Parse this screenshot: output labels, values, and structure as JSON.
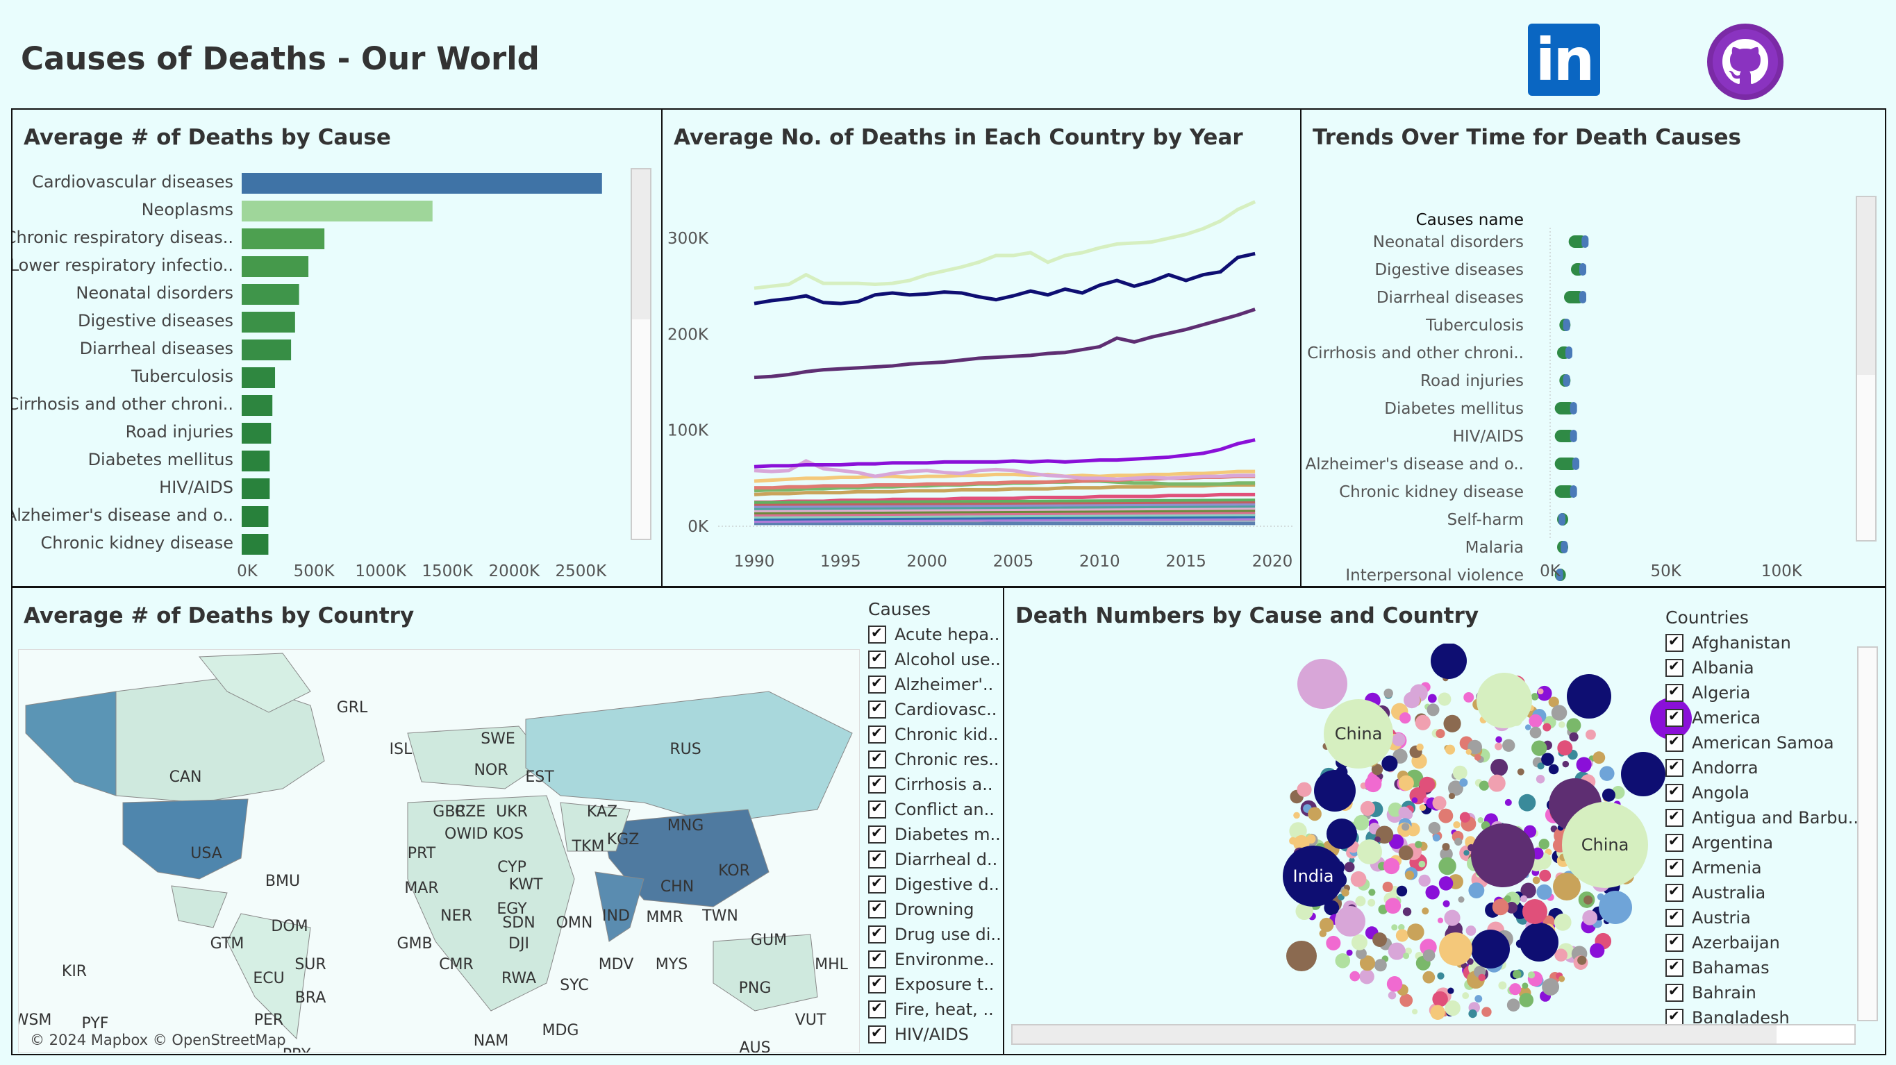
{
  "title": "Causes of Deaths - Our World",
  "logos": {
    "linkedin": "in",
    "github": "github-icon"
  },
  "bar_panel": {
    "title": "Average # of Deaths by Cause",
    "xticks": [
      "0K",
      "500K",
      "1000K",
      "1500K",
      "2000K",
      "2500K"
    ]
  },
  "line_panel": {
    "title": "Average No. of Deaths in Each Country by Year",
    "yticks": [
      "0K",
      "100K",
      "200K",
      "300K"
    ],
    "xticks": [
      "1990",
      "1995",
      "2000",
      "2005",
      "2010",
      "2015",
      "2020"
    ]
  },
  "trend_panel": {
    "title": "Trends Over Time for Death Causes",
    "header": "Causes name",
    "rows": [
      "Neonatal disorders",
      "Digestive diseases",
      "Diarrheal diseases",
      "Tuberculosis",
      "Cirrhosis and other chroni..",
      "Road injuries",
      "Diabetes mellitus",
      "HIV/AIDS",
      "Alzheimer's disease and o..",
      "Chronic kidney disease",
      "Self-harm",
      "Malaria",
      "Interpersonal violence"
    ],
    "xticks": [
      "0K",
      "50K",
      "100K"
    ]
  },
  "map_panel": {
    "title": "Average # of Deaths by Country",
    "copyright": "© 2024 Mapbox © OpenStreetMap",
    "labels": [
      "GRL",
      "ISL",
      "SWE",
      "NOR",
      "EST",
      "CAN",
      "RUS",
      "GBR",
      "CZE",
      "UKR",
      "KAZ",
      "MNG",
      "OWID_KOS",
      "USA",
      "PRT",
      "CYP",
      "KGZ",
      "TKM",
      "BMU",
      "MAR",
      "KWT",
      "CHN",
      "KOR",
      "EGY",
      "IND",
      "MMR",
      "TWN",
      "DOM",
      "NER",
      "SDN",
      "OMN",
      "GTM",
      "GMB",
      "DJI",
      "MDV",
      "GUM",
      "KIR",
      "SUR",
      "CMR",
      "MYS",
      "MHL",
      "ECU",
      "BRA",
      "RWA",
      "SYC",
      "PNG",
      "WSM",
      "PYF",
      "PER",
      "NAM",
      "MDG",
      "VUT",
      "AUS",
      "PRY"
    ]
  },
  "causes_legend": {
    "header": "Causes",
    "items": [
      "Acute hepa..",
      "Alcohol use..",
      "Alzheimer'..",
      "Cardiovasc..",
      "Chronic kid..",
      "Chronic res..",
      "Cirrhosis a..",
      "Conflict an..",
      "Diabetes m..",
      "Diarrheal d..",
      "Digestive d..",
      "Drowning",
      "Drug use di..",
      "Environme..",
      "Exposure t..",
      "Fire, heat, ..",
      "HIV/AIDS"
    ]
  },
  "bubble_panel": {
    "title": "Death Numbers by Cause and Country",
    "labels": [
      "China",
      "China",
      "India"
    ]
  },
  "countries_legend": {
    "header": "Countries",
    "items": [
      "Afghanistan",
      "Albania",
      "Algeria",
      "America",
      "American Samoa",
      "Andorra",
      "Angola",
      "Antigua and Barbu..",
      "Argentina",
      "Armenia",
      "Australia",
      "Austria",
      "Azerbaijan",
      "Bahamas",
      "Bahrain",
      "Bangladesh"
    ]
  },
  "chart_data": [
    {
      "type": "bar",
      "title": "Average # of Deaths by Cause",
      "categories": [
        "Cardiovascular diseases",
        "Neoplasms",
        "Chronic respiratory diseas..",
        "Lower respiratory infectio..",
        "Neonatal disorders",
        "Digestive diseases",
        "Diarrheal diseases",
        "Tuberculosis",
        "Cirrhosis and other chroni..",
        "Road injuries",
        "Diabetes mellitus",
        "HIV/AIDS",
        "Alzheimer's disease and o..",
        "Chronic kidney disease"
      ],
      "values": [
        2700000,
        1430000,
        620000,
        500000,
        430000,
        400000,
        370000,
        250000,
        230000,
        220000,
        210000,
        210000,
        200000,
        200000
      ],
      "xlim": [
        0,
        2800000
      ],
      "colors": [
        "#3f73a6",
        "#9fd69a",
        "#4da050",
        "#45994b",
        "#3f954a",
        "#3b9147",
        "#378e45",
        "#2f8740",
        "#2d853f",
        "#2b843e",
        "#2a833d",
        "#29823c",
        "#28813b",
        "#28813b"
      ]
    },
    {
      "type": "line",
      "title": "Average No. of Deaths in Each Country by Year",
      "x": [
        1990,
        1991,
        1992,
        1993,
        1994,
        1995,
        1996,
        1997,
        1998,
        1999,
        2000,
        2001,
        2002,
        2003,
        2004,
        2005,
        2006,
        2007,
        2008,
        2009,
        2010,
        2011,
        2012,
        2013,
        2014,
        2015,
        2016,
        2017,
        2018,
        2019
      ],
      "ylim": [
        0,
        350000
      ],
      "series": [
        {
          "color": "#d6efc0",
          "values": [
            248000,
            250000,
            252000,
            262000,
            253000,
            253000,
            253000,
            252000,
            253000,
            256000,
            262000,
            266000,
            270000,
            275000,
            282000,
            282000,
            285000,
            275000,
            282000,
            285000,
            290000,
            294000,
            295000,
            296000,
            300000,
            304000,
            310000,
            318000,
            330000,
            338000
          ]
        },
        {
          "color": "#0e0e72",
          "values": [
            232000,
            235000,
            237000,
            240000,
            233000,
            232000,
            234000,
            241000,
            243000,
            241000,
            242000,
            244000,
            243000,
            239000,
            236000,
            240000,
            245000,
            241000,
            247000,
            243000,
            251000,
            256000,
            250000,
            255000,
            262000,
            256000,
            262000,
            265000,
            280000,
            284000
          ]
        },
        {
          "color": "#5e2e72",
          "values": [
            155000,
            156000,
            158000,
            161000,
            163000,
            164000,
            165000,
            166000,
            167000,
            169000,
            170000,
            171000,
            173000,
            175000,
            176000,
            177000,
            178000,
            180000,
            181000,
            184000,
            187000,
            196000,
            192000,
            197000,
            201000,
            205000,
            210000,
            215000,
            220000,
            226000
          ]
        },
        {
          "color": "#8a10d8",
          "values": [
            62000,
            63000,
            63000,
            64000,
            64000,
            64000,
            65000,
            65000,
            66000,
            66000,
            66000,
            67000,
            67000,
            67000,
            67000,
            68000,
            67000,
            68000,
            67000,
            68000,
            69000,
            69000,
            70000,
            71000,
            72000,
            74000,
            76000,
            80000,
            86000,
            90000
          ]
        },
        {
          "color": "#d8a6d8",
          "values": [
            58000,
            57000,
            58000,
            68000,
            60000,
            58000,
            56000,
            52000,
            55000,
            57000,
            58000,
            56000,
            55000,
            58000,
            59000,
            58000,
            55000,
            53000,
            52000,
            50000,
            50000,
            49000,
            50000,
            51000,
            50000,
            51000,
            52000,
            52000,
            53000,
            53000
          ]
        },
        {
          "color": "#f4c87a",
          "values": [
            47000,
            48000,
            49000,
            50000,
            50000,
            51000,
            51000,
            52000,
            52000,
            51000,
            52000,
            52000,
            53000,
            53000,
            54000,
            54000,
            53000,
            54000,
            52000,
            53000,
            52000,
            53000,
            53000,
            54000,
            54000,
            55000,
            55000,
            56000,
            57000,
            57000
          ]
        },
        {
          "color": "#e07a72",
          "values": [
            40000,
            40000,
            41000,
            41000,
            42000,
            42000,
            42000,
            43000,
            43000,
            43000,
            44000,
            44000,
            44000,
            45000,
            45000,
            46000,
            46000,
            46000,
            47000,
            47000,
            48000,
            48000,
            49000,
            49000,
            50000,
            50000,
            51000,
            51000,
            52000,
            52000
          ]
        },
        {
          "color": "#7ab86a",
          "values": [
            37000,
            38000,
            38000,
            39000,
            39000,
            40000,
            40000,
            41000,
            41000,
            42000,
            42000,
            43000,
            43000,
            44000,
            44000,
            45000,
            45000,
            46000,
            46000,
            47000,
            47000,
            46000,
            45000,
            45000,
            44000,
            44000,
            44000,
            44000,
            45000,
            45000
          ]
        },
        {
          "color": "#c9a35a",
          "values": [
            33000,
            34000,
            34000,
            35000,
            35000,
            35000,
            36000,
            36000,
            36000,
            37000,
            37000,
            37000,
            38000,
            38000,
            38000,
            39000,
            39000,
            39000,
            40000,
            40000,
            40000,
            41000,
            41000,
            41000,
            42000,
            42000,
            42000,
            43000,
            43000,
            43000
          ]
        },
        {
          "color": "#e0507a",
          "values": [
            25000,
            25000,
            26000,
            26000,
            26000,
            27000,
            27000,
            27000,
            28000,
            28000,
            28000,
            28000,
            29000,
            29000,
            29000,
            29000,
            30000,
            30000,
            30000,
            30000,
            31000,
            31000,
            31000,
            31000,
            32000,
            32000,
            32000,
            33000,
            33000,
            33000
          ]
        },
        {
          "color": "#6fa4d8",
          "values": [
            18000,
            18000,
            18000,
            18000,
            19000,
            19000,
            19000,
            19000,
            19000,
            19000,
            20000,
            20000,
            20000,
            20000,
            20000,
            20000,
            21000,
            21000,
            21000,
            21000,
            21000,
            21000,
            22000,
            22000,
            22000,
            22000,
            22000,
            22000,
            23000,
            23000
          ]
        },
        {
          "color": "#f06ad0",
          "values": [
            14000,
            14000,
            14000,
            14000,
            14000,
            14000,
            15000,
            15000,
            15000,
            15000,
            15000,
            15000,
            15000,
            15000,
            15000,
            15000,
            15000,
            16000,
            16000,
            16000,
            16000,
            16000,
            16000,
            16000,
            16000,
            16000,
            16000,
            16000,
            17000,
            17000
          ]
        },
        {
          "color": "#3a8a9a",
          "values": [
            10000,
            10000,
            10000,
            10000,
            10000,
            10000,
            10000,
            10000,
            11000,
            11000,
            11000,
            11000,
            11000,
            11000,
            11000,
            11000,
            11000,
            11000,
            11000,
            11000,
            11000,
            12000,
            12000,
            12000,
            12000,
            12000,
            12000,
            12000,
            12000,
            12000
          ]
        },
        {
          "color": "#a0a0a0",
          "values": [
            6000,
            6000,
            6000,
            6000,
            6000,
            6000,
            6000,
            6000,
            6000,
            6000,
            6000,
            6000,
            6000,
            6000,
            7000,
            7000,
            7000,
            7000,
            7000,
            7000,
            7000,
            7000,
            7000,
            7000,
            7000,
            7000,
            7000,
            7000,
            7000,
            7000
          ]
        },
        {
          "color": "#5b7fb0",
          "values": [
            3000,
            3000,
            3000,
            3000,
            3000,
            3000,
            3000,
            3000,
            3000,
            3000,
            3000,
            3000,
            3000,
            3000,
            3000,
            3000,
            3000,
            3000,
            3000,
            3000,
            3000,
            3000,
            3000,
            3000,
            3000,
            3000,
            3000,
            3000,
            3000,
            3000
          ]
        }
      ]
    },
    {
      "type": "scatter",
      "title": "Trends Over Time for Death Causes",
      "categories": [
        "Neonatal disorders",
        "Digestive diseases",
        "Diarrheal diseases",
        "Tuberculosis",
        "Cirrhosis and other chroni..",
        "Road injuries",
        "Diabetes mellitus",
        "HIV/AIDS",
        "Alzheimer's disease and o..",
        "Chronic kidney disease",
        "Self-harm",
        "Malaria",
        "Interpersonal violence"
      ],
      "ranges": [
        [
          8000,
          16000
        ],
        [
          9000,
          15000
        ],
        [
          6000,
          15000
        ],
        [
          4000,
          8000
        ],
        [
          3000,
          9000
        ],
        [
          4000,
          8000
        ],
        [
          2000,
          11000
        ],
        [
          2000,
          11000
        ],
        [
          2000,
          12000
        ],
        [
          2000,
          11000
        ],
        [
          3000,
          6000
        ],
        [
          3000,
          7000
        ],
        [
          2000,
          5000
        ]
      ],
      "xlim": [
        0,
        120000
      ]
    },
    {
      "type": "scatter",
      "title": "Death Numbers by Cause and Country",
      "note": "packed bubble chart",
      "bubbles": [
        {
          "label": "China",
          "color": "#d6efc0",
          "size": 3
        },
        {
          "label": "China",
          "color": "#d6efc0",
          "size": 4
        },
        {
          "label": "India",
          "color": "#0e0e72",
          "size": 3
        }
      ]
    }
  ]
}
